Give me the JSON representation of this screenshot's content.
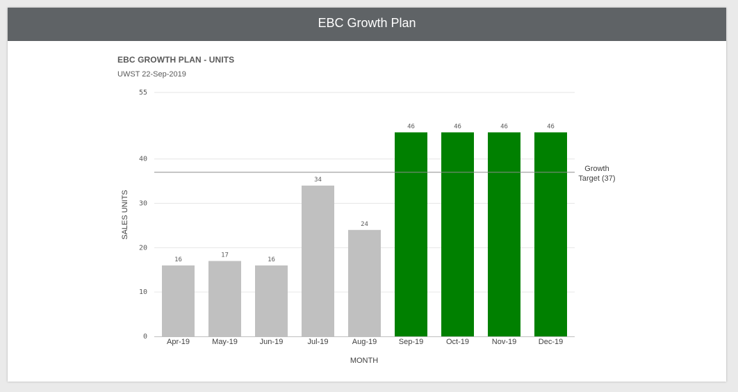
{
  "header": {
    "title": "EBC Growth Plan"
  },
  "chart_data": {
    "type": "bar",
    "title": "EBC GROWTH PLAN - UNITS",
    "subtitle": "UWST 22-Sep-2019",
    "xlabel": "MONTH",
    "ylabel": "SALES UNITS",
    "categories": [
      "Apr-19",
      "May-19",
      "Jun-19",
      "Jul-19",
      "Aug-19",
      "Sep-19",
      "Oct-19",
      "Nov-19",
      "Dec-19"
    ],
    "values": [
      16,
      17,
      16,
      34,
      24,
      46,
      46,
      46,
      46
    ],
    "bar_colors": [
      "#c0c0c0",
      "#c0c0c0",
      "#c0c0c0",
      "#c0c0c0",
      "#c0c0c0",
      "#008000",
      "#008000",
      "#008000",
      "#008000"
    ],
    "ylim": [
      0,
      55
    ],
    "yticks": [
      0,
      10,
      20,
      30,
      40,
      55
    ],
    "reference_line": {
      "value": 37,
      "label_lines": [
        "Growth",
        "Target (37)"
      ],
      "color": "#8c8c8c"
    },
    "grid": true,
    "data_labels": true
  }
}
